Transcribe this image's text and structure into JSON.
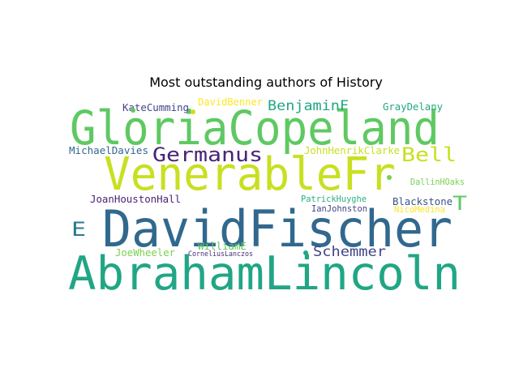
{
  "chart_data": {
    "type": "wordcloud",
    "title": "Most outstanding authors of History",
    "words": [
      {
        "text": "GloriaCopeland",
        "color": "#5ec962"
      },
      {
        "text": "VenerableFr",
        "color": "#c8e020"
      },
      {
        "text": "DavidFischer",
        "color": "#31688e"
      },
      {
        "text": "AbrahamLincoln",
        "color": "#21a685"
      },
      {
        "text": "Germanus",
        "color": "#482475"
      },
      {
        "text": "Bell",
        "color": "#c8e020"
      },
      {
        "text": "BenjaminF",
        "color": "#21a685"
      },
      {
        "text": "E",
        "color": "#2a788e"
      },
      {
        "text": "T",
        "color": "#5ec962"
      },
      {
        "text": "Schemmer",
        "color": "#414487"
      },
      {
        "text": "KateCumming",
        "color": "#414487"
      },
      {
        "text": "DavidBenner",
        "color": "#fde725"
      },
      {
        "text": "GrayDelany",
        "color": "#22a884"
      },
      {
        "text": "MichaelDavies",
        "color": "#31688e"
      },
      {
        "text": "JohnHenrikClarke",
        "color": "#c8e020"
      },
      {
        "text": "DallinHOaks",
        "color": "#7ad151"
      },
      {
        "text": "JoanHoustonHall",
        "color": "#482475"
      },
      {
        "text": "PatrickHuyghe",
        "color": "#2ab07f"
      },
      {
        "text": "Blackstone",
        "color": "#3b528b"
      },
      {
        "text": "IanJohnston",
        "color": "#414487"
      },
      {
        "text": "NicoMedina",
        "color": "#fde725"
      },
      {
        "text": "WilliamE",
        "color": "#5ec962"
      },
      {
        "text": "JoeWheeler",
        "color": "#7ad151"
      },
      {
        "text": "CorneliusLanczos",
        "color": "#472c7a"
      }
    ],
    "dots": [
      {
        "name": "accent-dot-copeland",
        "color": "#5ec962"
      },
      {
        "name": "accent-dot-venerable",
        "color": "#c8e020"
      },
      {
        "name": "accent-dot-lincoln",
        "color": "#21a685"
      },
      {
        "name": "accent-dot-dallin",
        "color": "#7ad151"
      }
    ]
  }
}
